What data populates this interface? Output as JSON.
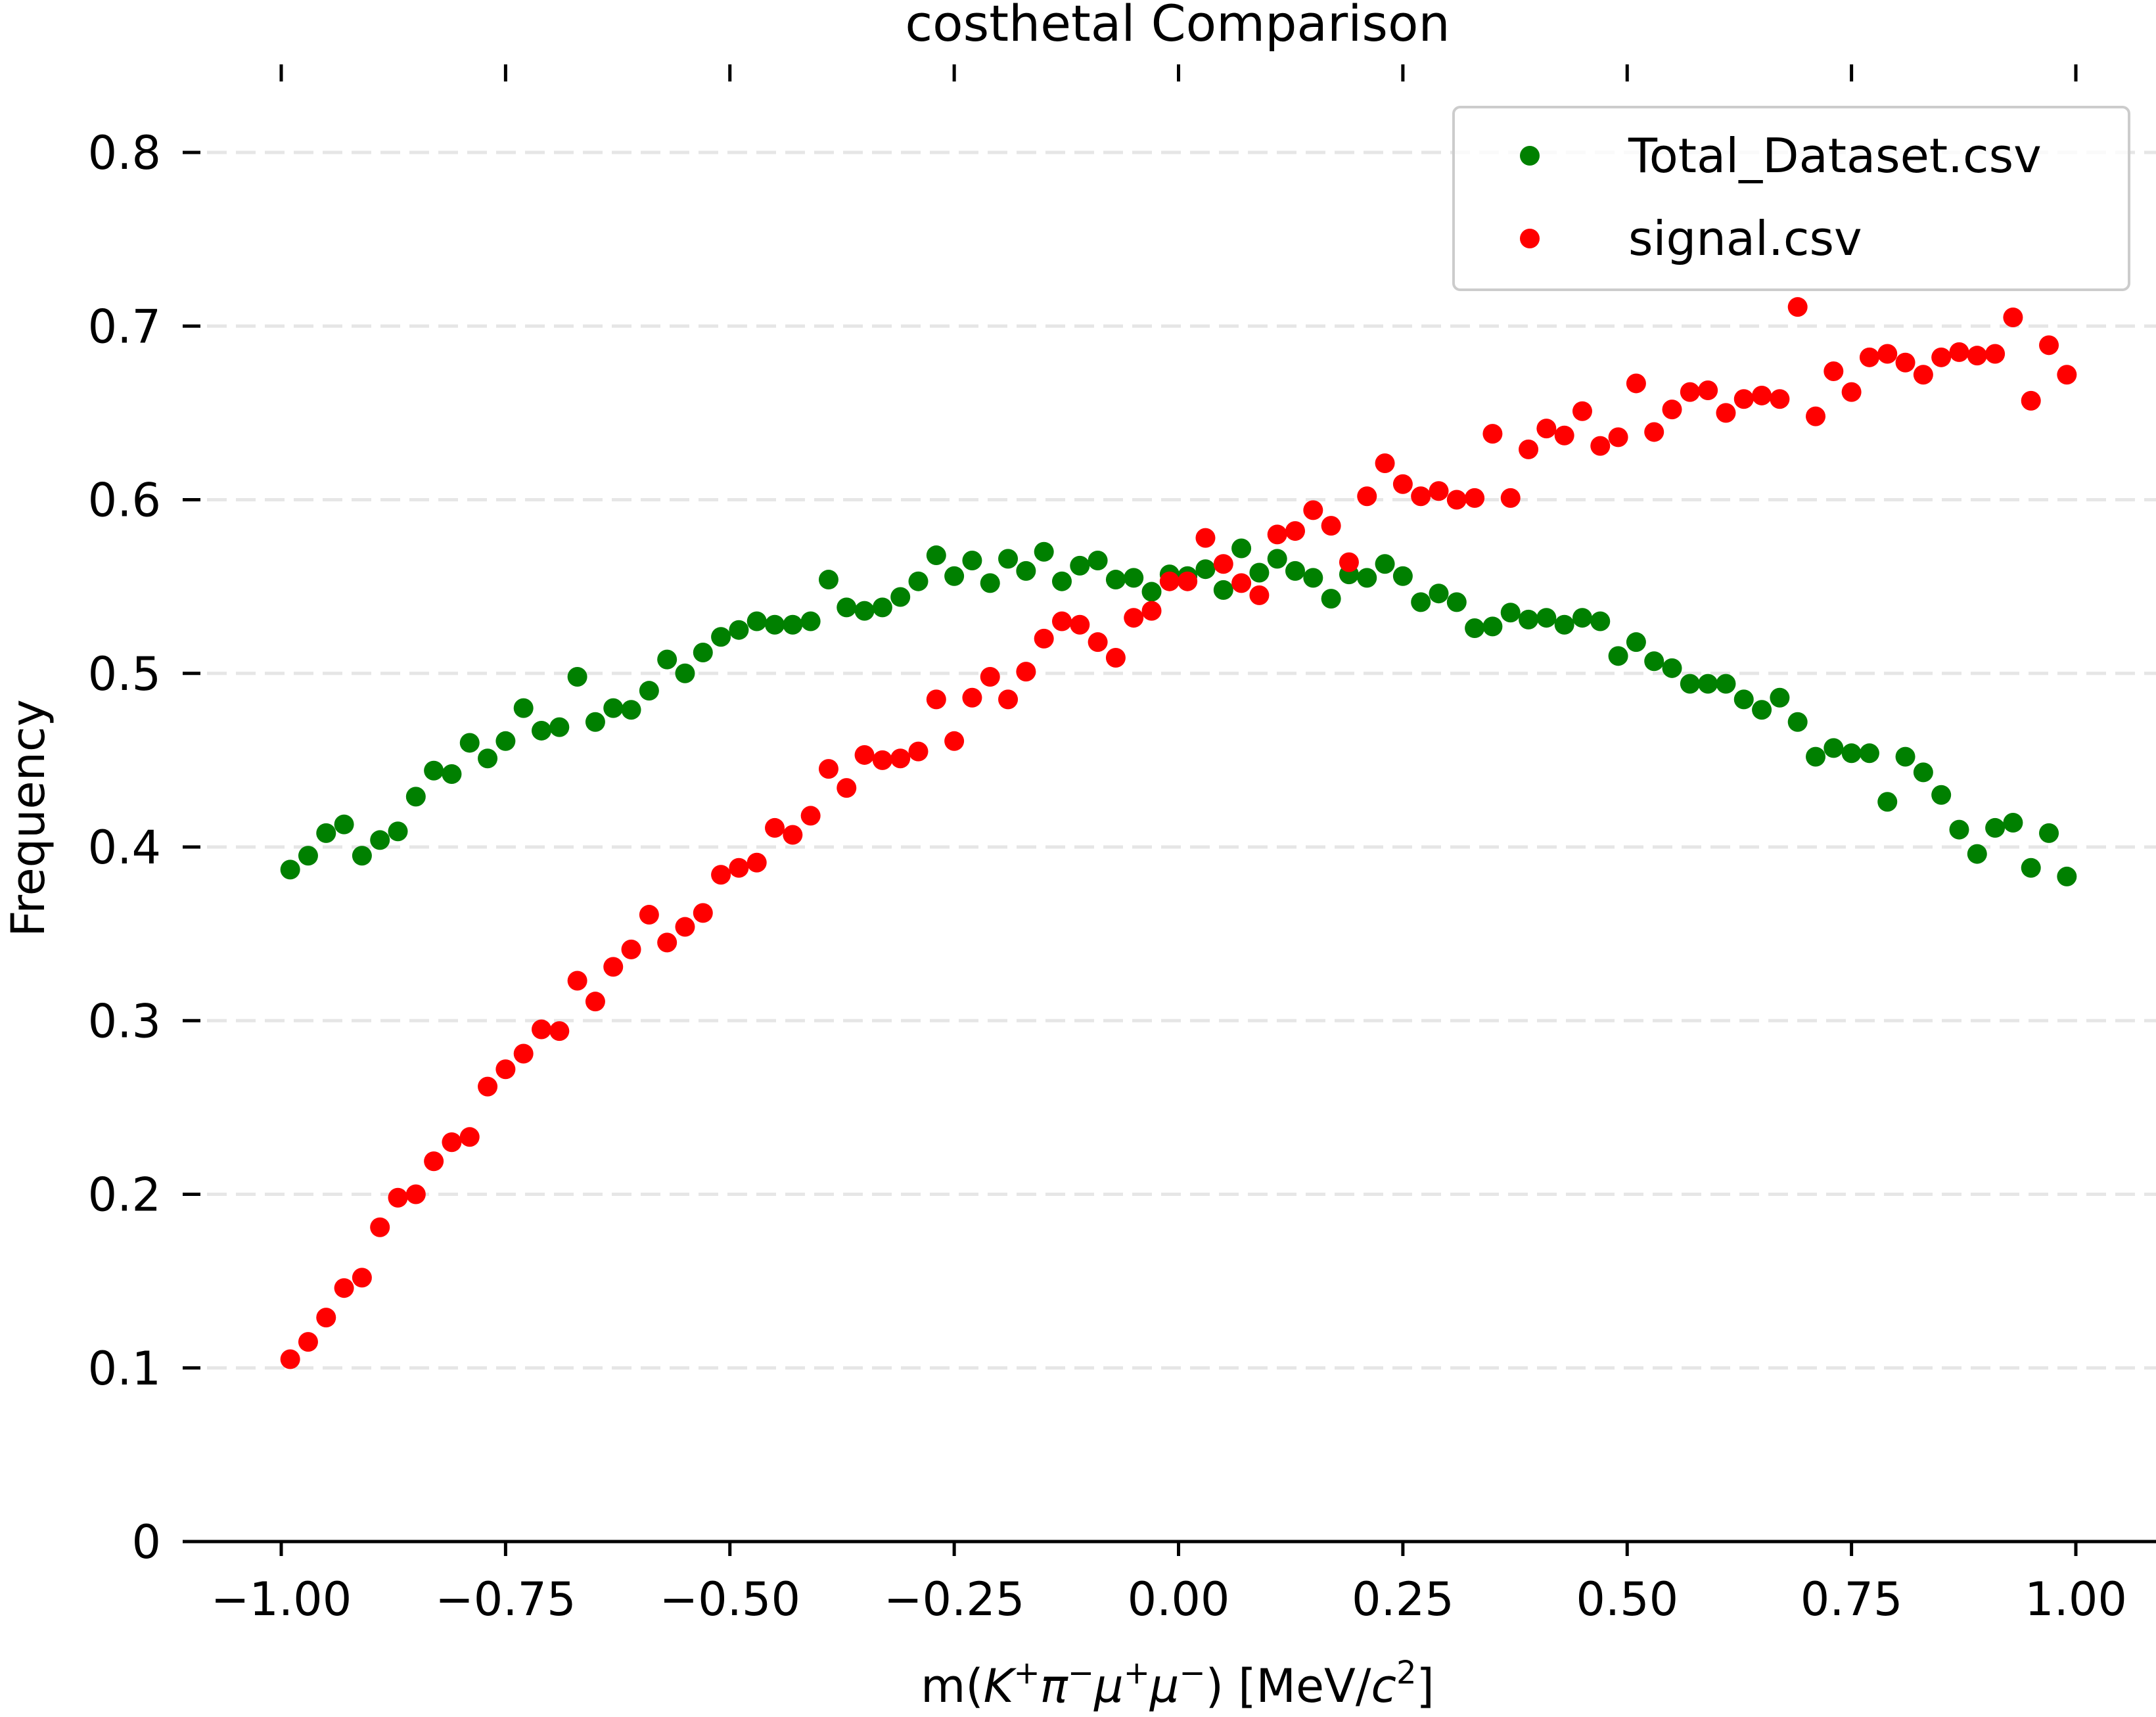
{
  "chart_data": {
    "type": "scatter",
    "title": "costhetal Comparison",
    "xlabel": "m(K⁺π⁻μ⁺μ⁻) [MeV/c²]",
    "xlabel_parts": {
      "m": "m(",
      "K": "K",
      "pi": "π",
      "mu1": "μ",
      "mu2": "μ",
      "close": ") [MeV/",
      "c": "c",
      "two": "2",
      "end": "]",
      "plus": "+",
      "minus": "−"
    },
    "ylabel": "Frequency",
    "xlim": [
      -1.11,
      1.11
    ],
    "ylim": [
      0,
      0.85
    ],
    "x_ticks": [
      -1.0,
      -0.75,
      -0.5,
      -0.25,
      0.0,
      0.25,
      0.5,
      0.75,
      1.0
    ],
    "x_tick_labels": [
      "−1.00",
      "−0.75",
      "−0.50",
      "−0.25",
      "0.00",
      "0.25",
      "0.50",
      "0.75",
      "1.00"
    ],
    "y_ticks": [
      0,
      0.1,
      0.2,
      0.3,
      0.4,
      0.5,
      0.6,
      0.7,
      0.8
    ],
    "y_tick_labels": [
      "0",
      "0.1",
      "0.2",
      "0.3",
      "0.4",
      "0.5",
      "0.6",
      "0.7",
      "0.8"
    ],
    "grid": "y-dashed",
    "legend_position": "top-right",
    "x": [
      -0.99,
      -0.97,
      -0.95,
      -0.93,
      -0.91,
      -0.89,
      -0.87,
      -0.85,
      -0.83,
      -0.81,
      -0.79,
      -0.77,
      -0.75,
      -0.73,
      -0.71,
      -0.69,
      -0.67,
      -0.65,
      -0.63,
      -0.61,
      -0.59,
      -0.57,
      -0.55,
      -0.53,
      -0.51,
      -0.49,
      -0.47,
      -0.45,
      -0.43,
      -0.41,
      -0.39,
      -0.37,
      -0.35,
      -0.33,
      -0.31,
      -0.29,
      -0.27,
      -0.25,
      -0.23,
      -0.21,
      -0.19,
      -0.17,
      -0.15,
      -0.13,
      -0.11,
      -0.09,
      -0.07,
      -0.05,
      -0.03,
      -0.01,
      0.01,
      0.03,
      0.05,
      0.07,
      0.09,
      0.11,
      0.13,
      0.15,
      0.17,
      0.19,
      0.21,
      0.23,
      0.25,
      0.27,
      0.29,
      0.31,
      0.33,
      0.35,
      0.37,
      0.39,
      0.41,
      0.43,
      0.45,
      0.47,
      0.49,
      0.51,
      0.53,
      0.55,
      0.57,
      0.59,
      0.61,
      0.63,
      0.65,
      0.67,
      0.69,
      0.71,
      0.73,
      0.75,
      0.77,
      0.79,
      0.81,
      0.83,
      0.85,
      0.87,
      0.89,
      0.91,
      0.93,
      0.95,
      0.97,
      0.99
    ],
    "series": [
      {
        "name": "Total_Dataset.csv",
        "color": "#008000",
        "values": [
          0.387,
          0.395,
          0.408,
          0.413,
          0.395,
          0.404,
          0.409,
          0.429,
          0.444,
          0.442,
          0.46,
          0.451,
          0.461,
          0.48,
          0.467,
          0.469,
          0.498,
          0.472,
          0.48,
          0.479,
          0.49,
          0.508,
          0.5,
          0.512,
          0.521,
          0.525,
          0.53,
          0.528,
          0.528,
          0.53,
          0.554,
          0.538,
          0.536,
          0.538,
          0.544,
          0.553,
          0.568,
          0.556,
          0.565,
          0.552,
          0.566,
          0.559,
          0.57,
          0.553,
          0.562,
          0.565,
          0.554,
          0.555,
          0.547,
          0.557,
          0.556,
          0.56,
          0.548,
          0.572,
          0.558,
          0.566,
          0.559,
          0.555,
          0.543,
          0.557,
          0.555,
          0.563,
          0.556,
          0.541,
          0.546,
          0.541,
          0.526,
          0.527,
          0.535,
          0.531,
          0.532,
          0.528,
          0.532,
          0.53,
          0.51,
          0.518,
          0.507,
          0.503,
          0.494,
          0.494,
          0.494,
          0.485,
          0.479,
          0.486,
          0.472,
          0.452,
          0.457,
          0.454,
          0.454,
          0.426,
          0.452,
          0.443,
          0.43,
          0.41,
          0.396,
          0.411,
          0.414,
          0.388,
          0.408,
          0.383
        ]
      },
      {
        "name": "signal.csv",
        "color": "#ff0000",
        "values": [
          0.105,
          0.115,
          0.129,
          0.146,
          0.152,
          0.181,
          0.198,
          0.2,
          0.219,
          0.23,
          0.233,
          0.262,
          0.272,
          0.281,
          0.295,
          0.294,
          0.323,
          0.311,
          0.331,
          0.341,
          0.361,
          0.345,
          0.354,
          0.362,
          0.384,
          0.388,
          0.391,
          0.411,
          0.407,
          0.418,
          0.445,
          0.434,
          0.453,
          0.45,
          0.451,
          0.455,
          0.485,
          0.461,
          0.486,
          0.498,
          0.485,
          0.501,
          0.52,
          0.53,
          0.528,
          0.518,
          0.509,
          0.532,
          0.536,
          0.553,
          0.553,
          0.578,
          0.563,
          0.552,
          0.545,
          0.58,
          0.582,
          0.594,
          0.585,
          0.564,
          0.602,
          0.621,
          0.609,
          0.602,
          0.605,
          0.6,
          0.601,
          0.638,
          0.601,
          0.629,
          0.641,
          0.637,
          0.651,
          0.631,
          0.636,
          0.667,
          0.639,
          0.652,
          0.662,
          0.663,
          0.65,
          0.658,
          0.66,
          0.658,
          0.711,
          0.648,
          0.674,
          0.662,
          0.682,
          0.684,
          0.679,
          0.672,
          0.682,
          0.685,
          0.683,
          0.684,
          0.705,
          0.657,
          0.689,
          0.672
        ]
      }
    ]
  }
}
